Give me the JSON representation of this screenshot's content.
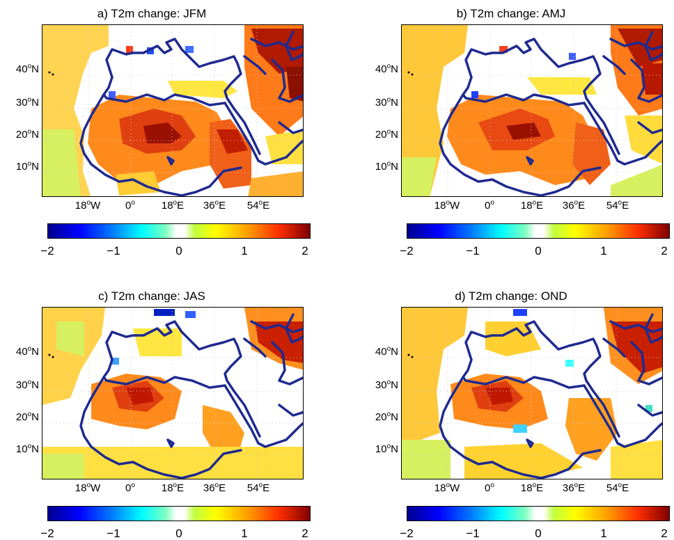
{
  "panels": [
    {
      "title": "a) T2m change: JFM"
    },
    {
      "title": "b) T2m change: AMJ"
    },
    {
      "title": "c) T2m change: JAS"
    },
    {
      "title": "d) T2m change: OND"
    }
  ],
  "y_ticks": [
    {
      "num": "40",
      "deg": "o",
      "hem": "N"
    },
    {
      "num": "30",
      "deg": "o",
      "hem": "N"
    },
    {
      "num": "20",
      "deg": "o",
      "hem": "N"
    },
    {
      "num": "10",
      "deg": "o",
      "hem": "N"
    }
  ],
  "x_ticks": [
    {
      "num": "18",
      "deg": "o",
      "hem": "W"
    },
    {
      "num": "0",
      "deg": "o",
      "hem": ""
    },
    {
      "num": "18",
      "deg": "o",
      "hem": "E"
    },
    {
      "num": "36",
      "deg": "o",
      "hem": "E"
    },
    {
      "num": "54",
      "deg": "o",
      "hem": "E"
    }
  ],
  "colorbar_ticks": [
    "−2",
    "−1",
    "0",
    "1",
    "2"
  ],
  "colors": {
    "coastline": "#1f2a8f",
    "hot": "#c81e00",
    "warm": "#ff8c00",
    "mild": "#ffd400",
    "cool": "#2050ff"
  }
}
